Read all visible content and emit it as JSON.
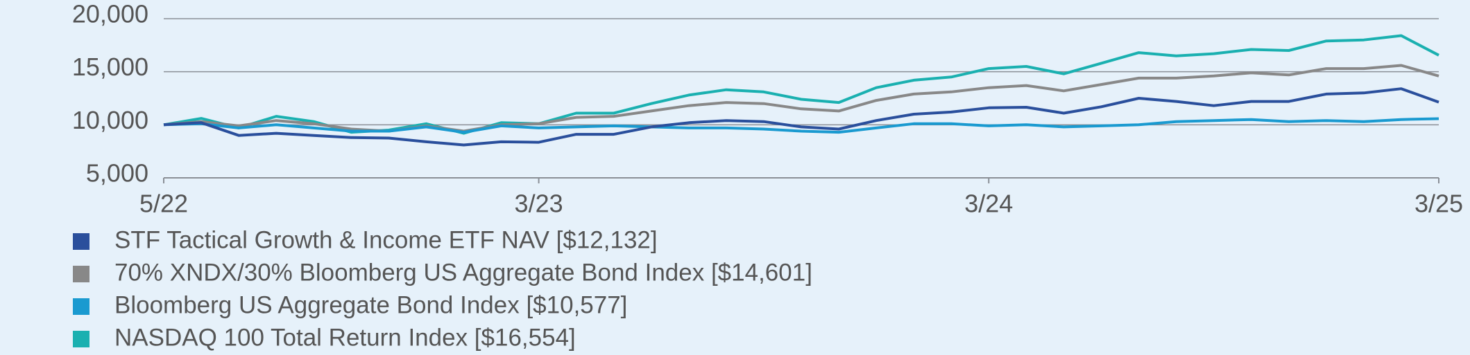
{
  "chart_data": {
    "type": "line",
    "categories": [
      "5/22",
      null,
      null,
      null,
      null,
      null,
      null,
      null,
      null,
      null,
      "3/23",
      null,
      null,
      null,
      null,
      null,
      null,
      null,
      null,
      null,
      null,
      null,
      "3/24",
      null,
      null,
      null,
      null,
      null,
      null,
      null,
      null,
      null,
      null,
      null,
      "3/25"
    ],
    "ylim": [
      5000,
      20000
    ],
    "yticks": [
      {
        "value": 5000,
        "label": "5,000"
      },
      {
        "value": 10000,
        "label": "10,000"
      },
      {
        "value": 15000,
        "label": "15,000"
      },
      {
        "value": 20000,
        "label": "20,000"
      }
    ],
    "grid": true,
    "legend": "bottom",
    "series": [
      {
        "name": "STF Tactical Growth & Income ETF NAV [$12,132]",
        "color": "#2a4f9c",
        "values": [
          10000,
          10200,
          9000,
          9200,
          9000,
          8800,
          8750,
          8400,
          8100,
          8400,
          8350,
          9100,
          9100,
          9800,
          10200,
          10400,
          10300,
          9800,
          9600,
          10400,
          11000,
          11200,
          11600,
          11650,
          11100,
          11700,
          12500,
          12200,
          11800,
          12200,
          12200,
          12900,
          13000,
          13400,
          12132
        ]
      },
      {
        "name": "70% XNDX/30% Bloomberg US Aggregate Bond Index [$14,601]",
        "color": "#888888",
        "values": [
          10000,
          10300,
          9900,
          10400,
          10100,
          9600,
          9400,
          9900,
          9400,
          10000,
          10100,
          10700,
          10800,
          11300,
          11800,
          12100,
          12000,
          11500,
          11300,
          12300,
          12900,
          13100,
          13500,
          13700,
          13200,
          13800,
          14400,
          14400,
          14600,
          14900,
          14700,
          15300,
          15300,
          15600,
          14601
        ]
      },
      {
        "name": "Bloomberg US Aggregate Bond Index [$10,577]",
        "color": "#1a9ad0",
        "values": [
          10000,
          10100,
          9700,
          10000,
          9700,
          9400,
          9400,
          9800,
          9300,
          9900,
          9700,
          9800,
          9900,
          9800,
          9700,
          9700,
          9600,
          9400,
          9300,
          9700,
          10100,
          10100,
          9900,
          10000,
          9800,
          9900,
          10000,
          10300,
          10400,
          10500,
          10300,
          10400,
          10300,
          10500,
          10577
        ]
      },
      {
        "name": "NASDAQ 100 Total Return Index [$16,554]",
        "color": "#1ab0b0",
        "values": [
          10000,
          10600,
          9700,
          10800,
          10300,
          9300,
          9500,
          10100,
          9200,
          10200,
          10100,
          11100,
          11100,
          12000,
          12800,
          13300,
          13100,
          12400,
          12100,
          13500,
          14200,
          14500,
          15300,
          15500,
          14800,
          15800,
          16800,
          16500,
          16700,
          17100,
          17000,
          17900,
          18000,
          18400,
          16554
        ]
      }
    ]
  }
}
